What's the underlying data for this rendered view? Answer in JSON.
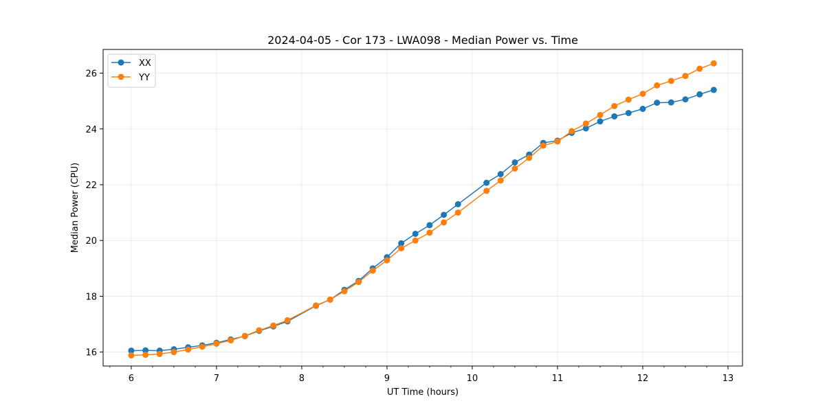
{
  "chart_data": {
    "type": "line",
    "title": "2024-04-05 - Cor 173 - LWA098 - Median Power vs. Time",
    "xlabel": "UT Time (hours)",
    "ylabel": "Median Power (CPU)",
    "xlim": [
      5.67,
      13.17
    ],
    "ylim": [
      15.5,
      26.85
    ],
    "xticks": [
      6,
      7,
      8,
      9,
      10,
      11,
      12,
      13
    ],
    "yticks": [
      16,
      18,
      20,
      22,
      24,
      26
    ],
    "grid": true,
    "legend_position": "top-left",
    "x": [
      6.0,
      6.167,
      6.333,
      6.5,
      6.667,
      6.833,
      7.0,
      7.167,
      7.333,
      7.5,
      7.667,
      7.833,
      8.167,
      8.333,
      8.5,
      8.667,
      8.833,
      9.0,
      9.167,
      9.333,
      9.5,
      9.667,
      9.833,
      10.167,
      10.333,
      10.5,
      10.667,
      10.833,
      11.0,
      11.167,
      11.333,
      11.5,
      11.667,
      11.833,
      12.0,
      12.167,
      12.333,
      12.5,
      12.667,
      12.833
    ],
    "series": [
      {
        "name": "XX",
        "color": "#1f77b4",
        "values": [
          16.05,
          16.06,
          16.05,
          16.1,
          16.17,
          16.24,
          16.33,
          16.45,
          16.57,
          16.76,
          16.92,
          17.1,
          17.66,
          17.88,
          18.23,
          18.55,
          19.0,
          19.4,
          19.9,
          20.24,
          20.55,
          20.92,
          21.3,
          22.07,
          22.38,
          22.8,
          23.08,
          23.5,
          23.58,
          23.86,
          24.02,
          24.27,
          24.45,
          24.57,
          24.72,
          24.94,
          24.95,
          25.06,
          25.24,
          25.4
        ]
      },
      {
        "name": "YY",
        "color": "#ff7f0e",
        "values": [
          15.88,
          15.9,
          15.93,
          16.0,
          16.09,
          16.19,
          16.3,
          16.42,
          16.58,
          16.78,
          16.95,
          17.14,
          17.67,
          17.88,
          18.18,
          18.51,
          18.92,
          19.29,
          19.72,
          20.0,
          20.28,
          20.65,
          21.0,
          21.78,
          22.15,
          22.58,
          22.96,
          23.4,
          23.55,
          23.92,
          24.19,
          24.5,
          24.82,
          25.05,
          25.26,
          25.56,
          25.72,
          25.9,
          26.16,
          26.35
        ]
      }
    ]
  }
}
